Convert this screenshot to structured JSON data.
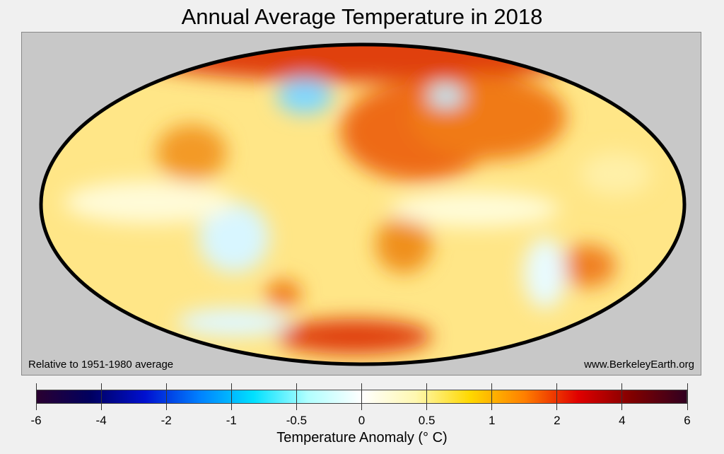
{
  "title": "Annual Average Temperature in 2018",
  "map": {
    "projection": "mollweide",
    "relative_note": "Relative to 1951-1980 average",
    "source": "www.BerkeleyEarth.org",
    "colors": {
      "panel_bg": "#c8c8c8",
      "ocean_warm": "#ffe27a",
      "hot": "#e0400a",
      "cold": "#7fd8ff"
    }
  },
  "colorbar": {
    "label": "Temperature Anomaly (° C)",
    "ticks": [
      "-6",
      "-4",
      "-2",
      "-1",
      "-0.5",
      "0",
      "0.5",
      "1",
      "2",
      "4",
      "6"
    ],
    "colors": [
      "#2a0030",
      "#000060",
      "#0010d0",
      "#0080ff",
      "#00e0ff",
      "#b0ffff",
      "#ffffff",
      "#fff8b0",
      "#ffd800",
      "#ff8000",
      "#e00000",
      "#800000",
      "#300020"
    ]
  }
}
